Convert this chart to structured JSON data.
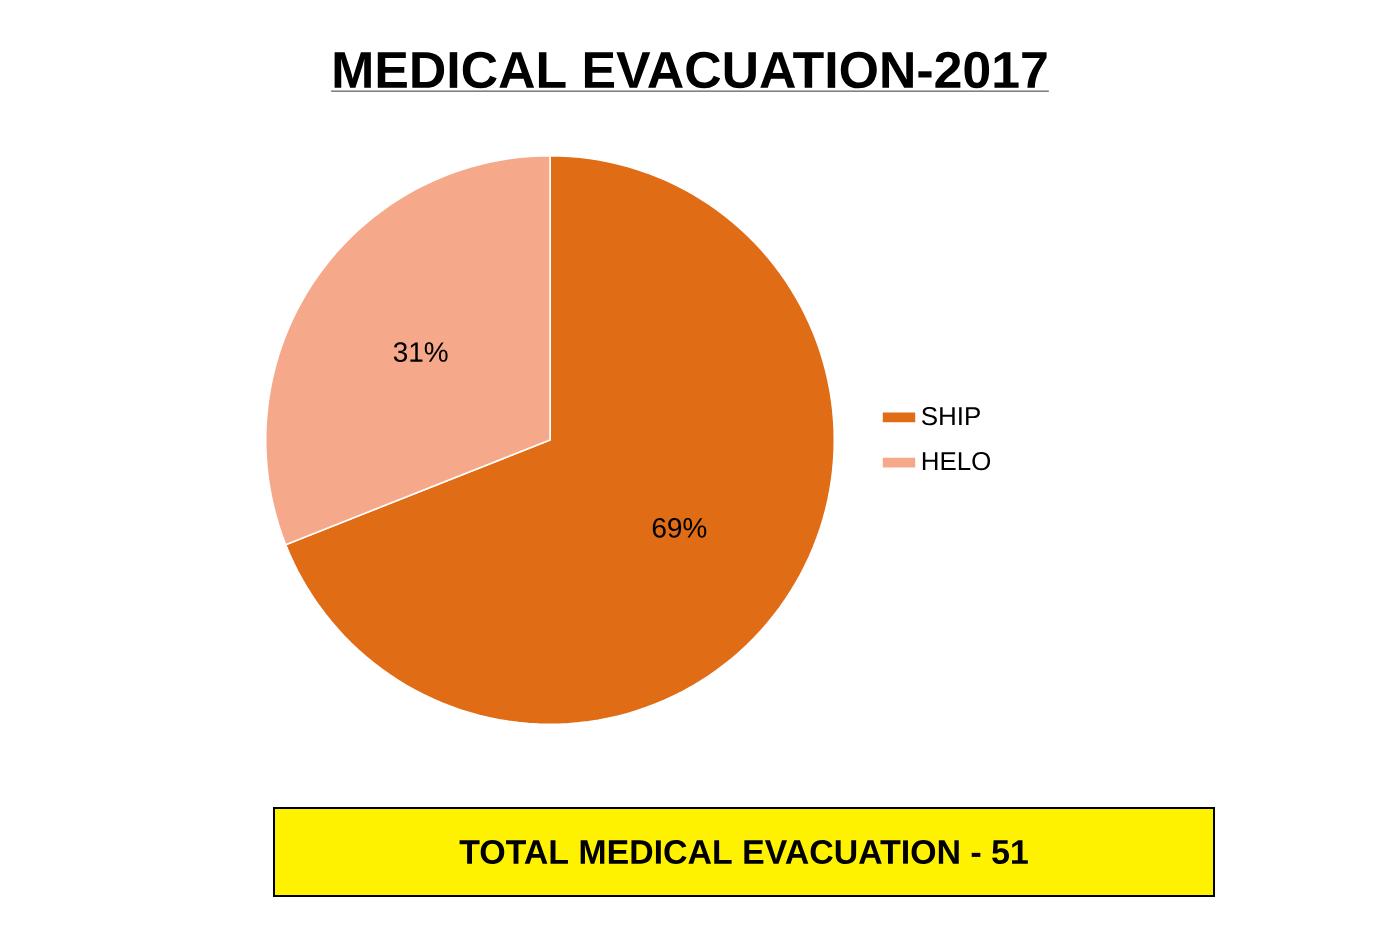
{
  "chart_data": {
    "type": "pie",
    "title": "MEDICAL EVACUATION-2017",
    "categories": [
      "SHIP",
      "HELO"
    ],
    "values": [
      69,
      31
    ],
    "value_labels": [
      "69%",
      "31%"
    ],
    "colors": [
      "#e06c16",
      "#f5a98a"
    ],
    "legend": "right",
    "annotations": [
      "TOTAL MEDICAL EVACUATION - 51"
    ]
  }
}
